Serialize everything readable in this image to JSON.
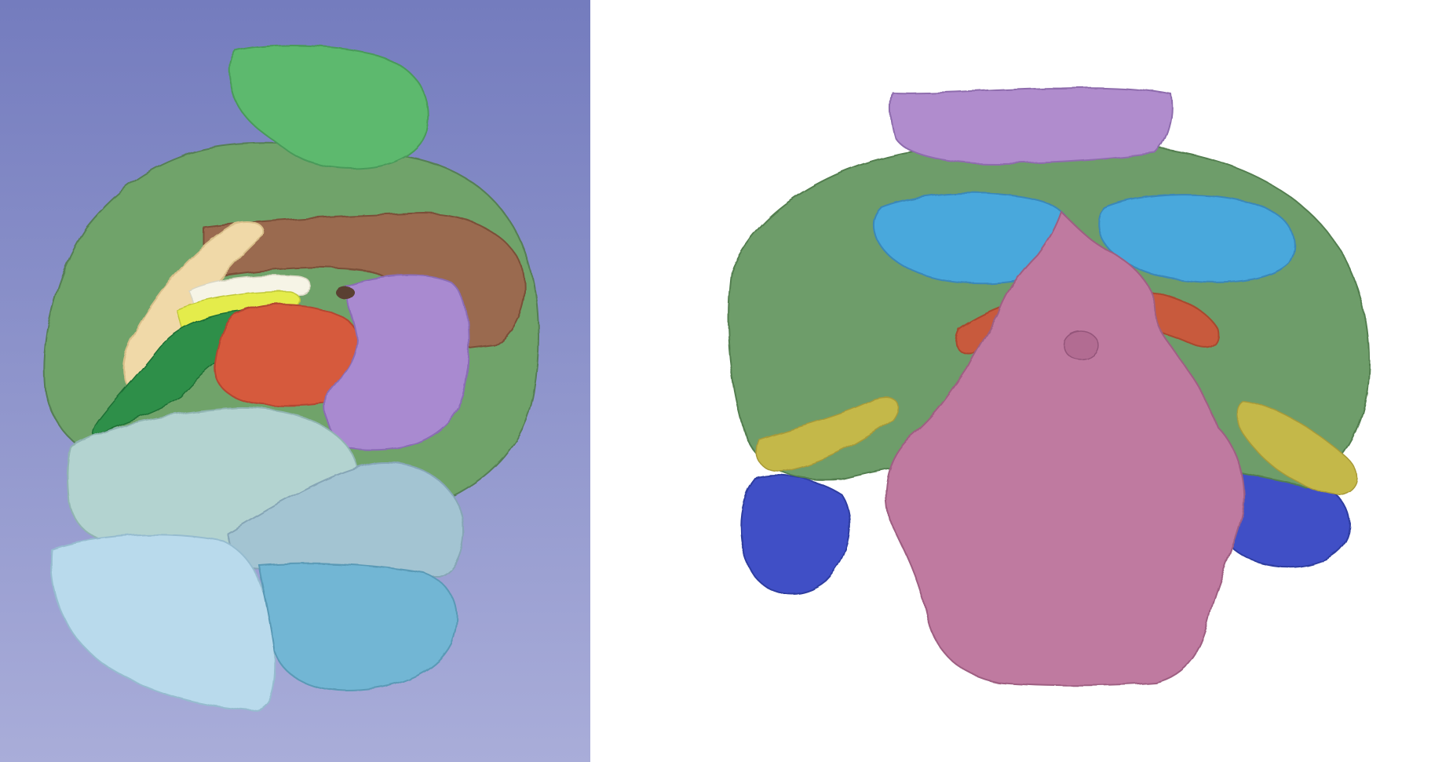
{
  "figure": {
    "panels": [
      {
        "id": "left",
        "background_gradient": [
          "#747cbe",
          "#a9add9"
        ],
        "regions": [
          {
            "name": "outer-shell",
            "color": "#6fa36b"
          },
          {
            "name": "top-lobe",
            "color": "#5db96e"
          },
          {
            "name": "brown-region",
            "color": "#9a6a4f"
          },
          {
            "name": "cream-band",
            "color": "#f0d9a8"
          },
          {
            "name": "white-band",
            "color": "#f6f4e6"
          },
          {
            "name": "yellow-band",
            "color": "#e4ec4c"
          },
          {
            "name": "green-band",
            "color": "#2f8f48"
          },
          {
            "name": "red-region",
            "color": "#d65a3c"
          },
          {
            "name": "purple-region",
            "color": "#a98ad0"
          },
          {
            "name": "pale-teal-region",
            "color": "#b3d3d0"
          },
          {
            "name": "grey-blue-region",
            "color": "#a3c4d2"
          },
          {
            "name": "light-blue-region",
            "color": "#b9daec"
          },
          {
            "name": "cyan-region",
            "color": "#72b6d4"
          }
        ]
      },
      {
        "id": "right",
        "background": "#ffffff",
        "regions": [
          {
            "name": "outer-shell",
            "color": "#6e9d6a"
          },
          {
            "name": "top-purple-region",
            "color": "#b08ccd"
          },
          {
            "name": "left-blue-lobe",
            "color": "#4aa8dc"
          },
          {
            "name": "right-blue-lobe",
            "color": "#4aa8dc"
          },
          {
            "name": "orange-band",
            "color": "#c85a3c"
          },
          {
            "name": "pink-central-region",
            "color": "#bf7aa0"
          },
          {
            "name": "yellow-edge-left",
            "color": "#c4b84a"
          },
          {
            "name": "yellow-edge-right",
            "color": "#c4b84a"
          },
          {
            "name": "dark-blue-left",
            "color": "#3f4fc6"
          },
          {
            "name": "dark-blue-right",
            "color": "#3f4fc6"
          }
        ]
      }
    ]
  }
}
